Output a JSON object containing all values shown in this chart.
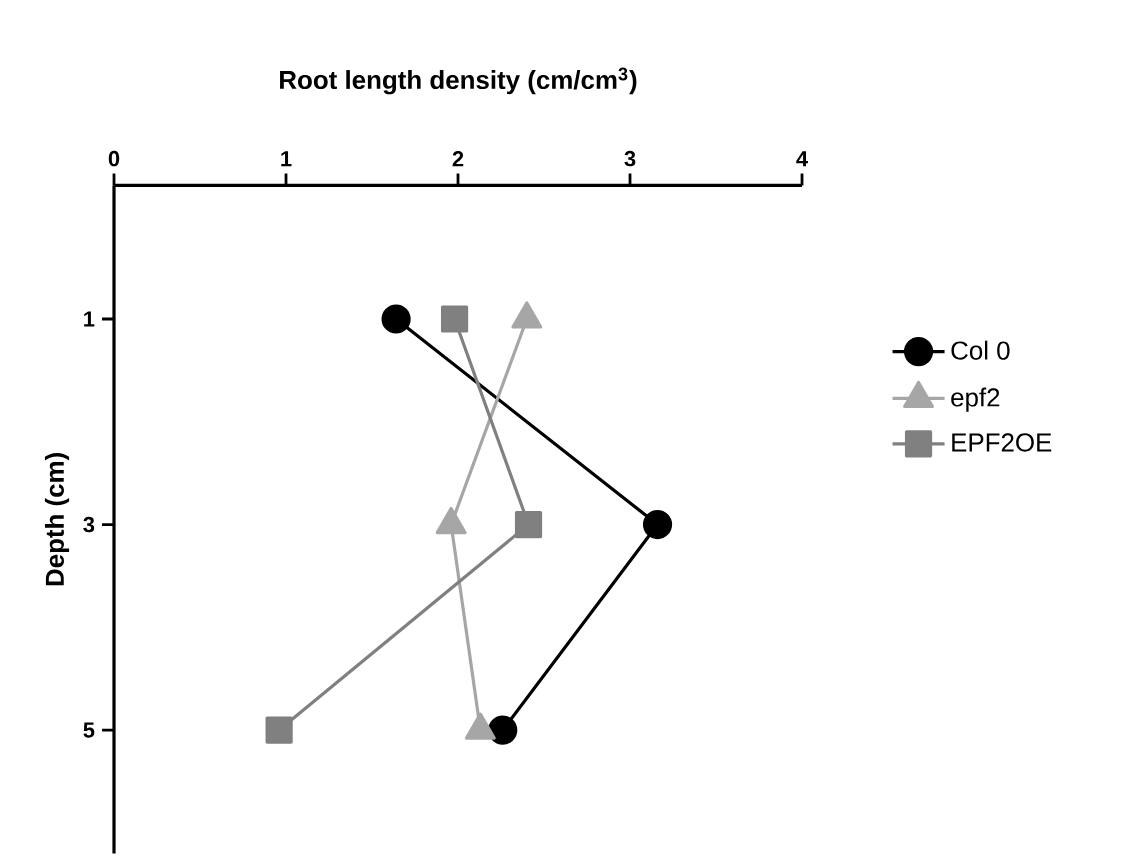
{
  "chart_data": {
    "type": "line",
    "xlabel": "Root length density  (cm/cm$^{3}$)",
    "ylabel": "Depth (cm)",
    "xlim": [
      0,
      4
    ],
    "xticks": [
      0,
      1,
      2,
      3,
      4
    ],
    "ylim": [
      6.2,
      -0.3
    ],
    "yticks": [
      1,
      3,
      5
    ],
    "legend": "right",
    "grid": false,
    "line_style": "solid",
    "series": [
      {
        "name": "Col 0",
        "color": "#000000",
        "marker": "circle",
        "x": [
          1.64,
          3.16,
          2.26
        ],
        "values": [
          1,
          3,
          5
        ]
      },
      {
        "name": "epf2",
        "color": "#a6a6a6",
        "marker": "triangle",
        "x": [
          2.4,
          1.96,
          2.13
        ],
        "values": [
          1,
          3,
          5
        ]
      },
      {
        "name": "EPF2OE",
        "color": "#808080",
        "marker": "square",
        "x": [
          1.98,
          2.41,
          0.96
        ],
        "values": [
          1,
          3,
          5
        ]
      }
    ]
  }
}
